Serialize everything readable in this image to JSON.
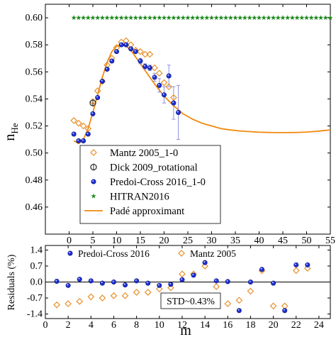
{
  "colors": {
    "mantz": "#e8902a",
    "dick": "#333333",
    "predoi": "#1e2fd0",
    "hitran": "#1f8a1f",
    "pade": "#f08a10",
    "errorbar": "#8f8fe0"
  },
  "chart_data": [
    {
      "type": "scatter",
      "ylabel": "n",
      "ylabel_sub": "He",
      "xlim": [
        -5,
        55
      ],
      "ylim": [
        0.44,
        0.61
      ],
      "xticks": [
        0,
        5,
        10,
        15,
        20,
        25,
        30,
        35,
        40,
        45,
        50,
        55
      ],
      "yticks": [
        0.46,
        0.48,
        0.5,
        0.52,
        0.54,
        0.56,
        0.58,
        0.6
      ],
      "ytick_labels": [
        "0.46",
        "0.48",
        "0.50",
        "0.52",
        "0.54",
        "0.56",
        "0.58",
        "0.60"
      ],
      "legend_position": "bottom-left",
      "series": [
        {
          "name": "Mantz  2005_1-0",
          "marker": "diamond-open",
          "x": [
            1,
            2,
            3,
            4,
            5,
            6,
            7,
            8,
            9,
            10,
            11,
            12,
            13,
            14,
            15,
            16,
            17,
            18,
            19,
            20,
            21,
            22
          ],
          "y": [
            0.524,
            0.522,
            0.52,
            0.518,
            0.538,
            0.546,
            0.553,
            0.565,
            0.57,
            0.578,
            0.582,
            0.583,
            0.58,
            0.576,
            0.575,
            0.573,
            0.573,
            0.563,
            0.559,
            0.552,
            0.549,
            0.541
          ]
        },
        {
          "name": "Dick 2009_rotational",
          "marker": "circle-open-bar",
          "x": [
            5
          ],
          "y": [
            0.537
          ],
          "err": [
            0.003
          ]
        },
        {
          "name": "Predoi-Cross 2016_1-0",
          "marker": "circle-filled-blue",
          "x": [
            1,
            2,
            3,
            4,
            5,
            6,
            7,
            8,
            9,
            10,
            11,
            12,
            13,
            14,
            15,
            16,
            17,
            18,
            19,
            20,
            21,
            22,
            23
          ],
          "y": [
            0.514,
            0.509,
            0.509,
            0.514,
            0.529,
            0.541,
            0.553,
            0.562,
            0.568,
            0.575,
            0.58,
            0.58,
            0.577,
            0.575,
            0.568,
            0.564,
            0.563,
            0.556,
            0.55,
            0.543,
            0.557,
            0.537,
            0.53
          ],
          "err": [
            0,
            0,
            0,
            0,
            0,
            0,
            0,
            0,
            0,
            0,
            0,
            0,
            0,
            0,
            0.002,
            0.002,
            0.002,
            0.003,
            0.005,
            0.006,
            0.008,
            0.012,
            0.02
          ]
        },
        {
          "name": "HITRAN2016",
          "marker": "star-green",
          "x": [
            1,
            2,
            3,
            4,
            5,
            6,
            7,
            8,
            9,
            10,
            11,
            12,
            13,
            14,
            15,
            16,
            17,
            18,
            19,
            20,
            21,
            22,
            23,
            24,
            25,
            26,
            27,
            28,
            29,
            30,
            31,
            32,
            33,
            34,
            35,
            36,
            37,
            38,
            39,
            40,
            41,
            42,
            43,
            44,
            45,
            46,
            47,
            48,
            49,
            50,
            51,
            52,
            53,
            54,
            55
          ],
          "y": [
            0.6,
            0.6,
            0.6,
            0.6,
            0.6,
            0.6,
            0.6,
            0.6,
            0.6,
            0.6,
            0.6,
            0.6,
            0.6,
            0.6,
            0.6,
            0.6,
            0.6,
            0.6,
            0.6,
            0.6,
            0.6,
            0.6,
            0.6,
            0.6,
            0.6,
            0.6,
            0.6,
            0.6,
            0.6,
            0.6,
            0.6,
            0.6,
            0.6,
            0.6,
            0.6,
            0.6,
            0.6,
            0.6,
            0.6,
            0.6,
            0.6,
            0.6,
            0.6,
            0.6,
            0.6,
            0.6,
            0.6,
            0.6,
            0.6,
            0.6,
            0.6,
            0.6,
            0.6,
            0.6,
            0.6
          ]
        },
        {
          "name": "Padé approximant",
          "marker": "line-orange",
          "x": [
            1,
            2,
            3,
            4,
            5,
            6,
            7,
            8,
            9,
            10,
            11,
            12,
            13,
            14,
            15,
            16,
            17,
            18,
            20,
            22,
            24,
            26,
            28,
            30,
            32,
            34,
            36,
            38,
            40,
            42,
            44,
            46,
            48,
            50,
            52,
            54,
            55
          ],
          "y": [
            0.509,
            0.507,
            0.51,
            0.518,
            0.53,
            0.543,
            0.556,
            0.567,
            0.575,
            0.579,
            0.58,
            0.579,
            0.576,
            0.571,
            0.566,
            0.561,
            0.556,
            0.551,
            0.542,
            0.535,
            0.529,
            0.525,
            0.522,
            0.52,
            0.518,
            0.517,
            0.5163,
            0.5158,
            0.5154,
            0.5152,
            0.5151,
            0.5151,
            0.5152,
            0.5155,
            0.516,
            0.5167,
            0.517
          ]
        }
      ]
    },
    {
      "type": "scatter",
      "ylabel": "Residuals (%)",
      "xlabel": "m",
      "xlim": [
        0,
        25
      ],
      "ylim": [
        -1.6,
        1.6
      ],
      "xticks": [
        0,
        2,
        4,
        6,
        8,
        10,
        12,
        14,
        16,
        18,
        20,
        22,
        24
      ],
      "yticks": [
        -1.4,
        -0.7,
        0.0,
        0.7,
        1.4
      ],
      "ytick_labels": [
        "-1.4",
        "-0.7",
        "0.0",
        "0.7",
        "1.4"
      ],
      "annotation": "STD~0.43%",
      "legend_position": "top",
      "series": [
        {
          "name": "Predoi-Cross 2016",
          "marker": "circle-filled-blue",
          "x": [
            1,
            2,
            3,
            4,
            5,
            6,
            7,
            8,
            9,
            10,
            11,
            12,
            13,
            14,
            15,
            16,
            17,
            18,
            19,
            20,
            21,
            22,
            23
          ],
          "y": [
            0.03,
            -0.15,
            0.12,
            0.05,
            -0.05,
            0.0,
            -0.13,
            0.05,
            -0.05,
            -0.15,
            -0.1,
            0.1,
            0.3,
            0.85,
            0.05,
            0.02,
            -1.25,
            0.0,
            0.55,
            -0.05,
            -1.25,
            0.75,
            0.75
          ]
        },
        {
          "name": "Mantz 2005",
          "marker": "diamond-open",
          "x": [
            1,
            2,
            3,
            4,
            5,
            6,
            7,
            8,
            9,
            10,
            11,
            12,
            13,
            14,
            15,
            16,
            17,
            18,
            19,
            20,
            21,
            22,
            23
          ],
          "y": [
            -1.0,
            -0.95,
            -0.85,
            -0.65,
            -0.7,
            -0.6,
            -0.6,
            -0.45,
            -0.45,
            -0.3,
            -0.25,
            0.35,
            0.35,
            0.7,
            -0.2,
            -0.95,
            -0.8,
            -0.4,
            0.5,
            -1.05,
            -1.05,
            0.5,
            0.6
          ]
        }
      ]
    }
  ]
}
